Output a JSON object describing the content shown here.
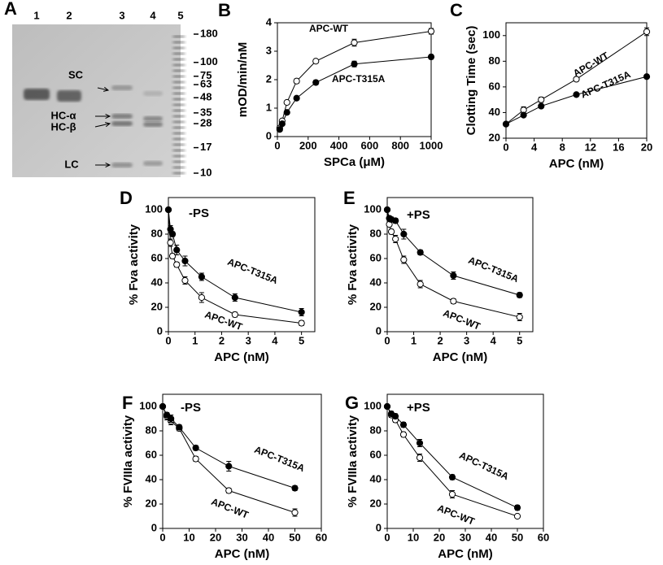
{
  "chart_data": [
    {
      "type": "gel",
      "panel": "A",
      "categories": [
        "1",
        "2",
        "3",
        "4",
        "5"
      ],
      "annotations": [
        "SC",
        "HC-α",
        "HC-β",
        "LC"
      ],
      "ylim": [
        10,
        180
      ],
      "yticks": [
        180,
        100,
        75,
        63,
        48,
        35,
        28,
        17,
        10
      ],
      "log": true
    },
    {
      "type": "line",
      "panel": "B",
      "xlabel": "SPCa (μM)",
      "ylabel": "mOD/min/nM",
      "xlim": [
        0,
        1000
      ],
      "xticks": [
        0,
        200,
        400,
        600,
        800,
        1000
      ],
      "ylim": [
        0,
        4
      ],
      "yticks": [
        0,
        1,
        2,
        3,
        4
      ],
      "x": [
        15,
        31,
        62,
        125,
        250,
        500,
        1000
      ],
      "series": [
        {
          "name": "APC-WT",
          "color": "#000000",
          "marker": "open",
          "values": [
            0.3,
            0.55,
            1.2,
            1.95,
            2.65,
            3.3,
            3.7
          ],
          "errors": [
            0.03,
            0.04,
            0.06,
            0.08,
            0.06,
            0.12,
            0.1
          ]
        },
        {
          "name": "APC-T315A",
          "color": "#000000",
          "marker": "filled",
          "values": [
            0.25,
            0.45,
            0.85,
            1.35,
            1.9,
            2.55,
            2.8
          ],
          "errors": [
            0.03,
            0.04,
            0.05,
            0.06,
            0.08,
            0.1,
            0.08
          ]
        }
      ]
    },
    {
      "type": "line",
      "panel": "C",
      "xlabel": "APC (nM)",
      "ylabel": "Clotting Time (sec)",
      "xlim": [
        0,
        20
      ],
      "xticks": [
        0,
        4,
        8,
        12,
        16,
        20
      ],
      "ylim": [
        20,
        110
      ],
      "yticks": [
        20,
        40,
        60,
        80,
        100
      ],
      "x": [
        0,
        2.5,
        5,
        10,
        20
      ],
      "series": [
        {
          "name": "APC-WT",
          "color": "#000000",
          "marker": "open",
          "values": [
            31,
            42,
            50,
            66,
            103
          ],
          "errors": [
            1,
            2.5,
            2,
            1.5,
            3
          ]
        },
        {
          "name": "APC-T315A",
          "color": "#000000",
          "marker": "filled",
          "values": [
            31,
            38,
            45,
            54,
            68
          ],
          "errors": [
            1,
            1,
            1,
            1,
            1.5
          ]
        }
      ]
    },
    {
      "type": "line",
      "panel": "D",
      "annotation": "-PS",
      "xlabel": "APC (nM)",
      "ylabel": "% Fva activity",
      "xlim": [
        0,
        5.5
      ],
      "xticks": [
        0,
        1,
        2,
        3,
        4,
        5
      ],
      "ylim": [
        0,
        110
      ],
      "yticks": [
        0,
        20,
        40,
        60,
        80,
        100
      ],
      "x": [
        0,
        0.078,
        0.156,
        0.3125,
        0.625,
        1.25,
        2.5,
        5
      ],
      "series": [
        {
          "name": "APC-WT",
          "color": "#000000",
          "marker": "open",
          "values": [
            100,
            73,
            62,
            55,
            42,
            28,
            14,
            7
          ],
          "errors": [
            1,
            3,
            2,
            2,
            3,
            4,
            2,
            2
          ]
        },
        {
          "name": "APC-T315A",
          "color": "#000000",
          "marker": "filled",
          "values": [
            100,
            84,
            80,
            67,
            58,
            45,
            28,
            16
          ],
          "errors": [
            1,
            3,
            2,
            4,
            4,
            3,
            3,
            3
          ]
        }
      ]
    },
    {
      "type": "line",
      "panel": "E",
      "annotation": "+PS",
      "xlabel": "APC (nM)",
      "ylabel": "% Fva activity",
      "xlim": [
        0,
        5.5
      ],
      "xticks": [
        0,
        1,
        2,
        3,
        4,
        5
      ],
      "ylim": [
        0,
        110
      ],
      "yticks": [
        0,
        20,
        40,
        60,
        80,
        100
      ],
      "x": [
        0,
        0.078,
        0.156,
        0.3125,
        0.625,
        1.25,
        2.5,
        5
      ],
      "series": [
        {
          "name": "APC-WT",
          "color": "#000000",
          "marker": "open",
          "values": [
            100,
            88,
            82,
            76,
            59,
            39,
            25,
            12
          ],
          "errors": [
            1,
            2,
            2,
            3,
            3,
            3,
            2,
            3
          ]
        },
        {
          "name": "APC-T315A",
          "color": "#000000",
          "marker": "filled",
          "values": [
            100,
            93,
            92,
            91,
            80,
            65,
            46,
            30
          ],
          "errors": [
            1,
            2,
            2,
            2,
            4,
            2,
            3,
            2
          ]
        }
      ]
    },
    {
      "type": "line",
      "panel": "F",
      "annotation": "-PS",
      "xlabel": "APC (nM)",
      "ylabel": "% FVIIIa activity",
      "xlim": [
        0,
        60
      ],
      "xticks": [
        0,
        10,
        20,
        30,
        40,
        50,
        60
      ],
      "ylim": [
        0,
        110
      ],
      "yticks": [
        0,
        20,
        40,
        60,
        80,
        100
      ],
      "x": [
        0,
        1.56,
        3.125,
        6.25,
        12.5,
        25,
        50
      ],
      "series": [
        {
          "name": "APC-WT",
          "color": "#000000",
          "marker": "open",
          "values": [
            100,
            92,
            88,
            82,
            57,
            31,
            13
          ],
          "errors": [
            1,
            3,
            3,
            2,
            2,
            2,
            3
          ]
        },
        {
          "name": "APC-T315A",
          "color": "#000000",
          "marker": "filled",
          "values": [
            100,
            93,
            90,
            83,
            66,
            51,
            33
          ],
          "errors": [
            1,
            2,
            3,
            2,
            2,
            4,
            2
          ]
        }
      ]
    },
    {
      "type": "line",
      "panel": "G",
      "annotation": "+PS",
      "xlabel": "APC (nM)",
      "ylabel": "% FVIIIa activity",
      "xlim": [
        0,
        60
      ],
      "xticks": [
        0,
        10,
        20,
        30,
        40,
        50,
        60
      ],
      "ylim": [
        0,
        110
      ],
      "yticks": [
        0,
        20,
        40,
        60,
        80,
        100
      ],
      "x": [
        0,
        1.56,
        3.125,
        6.25,
        12.5,
        25,
        50
      ],
      "series": [
        {
          "name": "APC-WT",
          "color": "#000000",
          "marker": "open",
          "values": [
            100,
            93,
            89,
            77,
            58,
            28,
            10
          ],
          "errors": [
            1,
            2,
            2,
            2,
            3,
            3,
            1
          ]
        },
        {
          "name": "APC-T315A",
          "color": "#000000",
          "marker": "filled",
          "values": [
            100,
            94,
            92,
            85,
            70,
            42,
            17
          ],
          "errors": [
            1,
            2,
            2,
            2,
            3,
            2,
            2
          ]
        }
      ]
    }
  ]
}
